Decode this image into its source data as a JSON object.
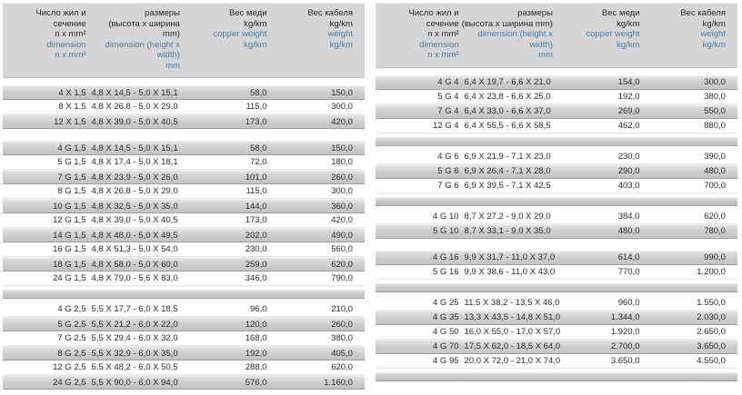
{
  "colors": {
    "header_bg": "#d6d6d6",
    "row_gray": "#cbcbcb",
    "row_white": "#ffffff",
    "text_black": "#2b2b2b",
    "text_blue": "#4a80ac"
  },
  "tables": [
    {
      "side": "left",
      "header": {
        "designation_ru": "Число жил и\nсечение\nn x mm²",
        "designation_en": "dimension\nn x mm²",
        "dimensions_ru": "размеры\n(высота х ширина\nmm)",
        "dimensions_en": "dimension (height x\nwidth)\nmm",
        "copper_ru": "Вес меди\nkg/km",
        "copper_en": "copper weight\nkg/km",
        "weight_ru": "Вес кабеля\nkg/km",
        "weight_en": "weight\nkg/km"
      },
      "end_bar": false,
      "groups": [
        {
          "sep": "none",
          "rows": [
            {
              "designation": "4 X 1,5",
              "dimensions": "4,8 X 14,5 - 5,0 X 15,1",
              "copper": "58,0",
              "weight": "150,0",
              "shade": "gray"
            },
            {
              "designation": "8 X 1,5",
              "dimensions": "4,8 X 26,8 - 5,0 X 29,0",
              "copper": "115,0",
              "weight": "300,0",
              "shade": "white"
            },
            {
              "designation": "12 X 1,5",
              "dimensions": "4,8 X 39,0 - 5,0 X 40,5",
              "copper": "173,0",
              "weight": "420,0",
              "shade": "gray"
            }
          ]
        },
        {
          "sep": "gap",
          "rows": [
            {
              "designation": "4 G 1,5",
              "dimensions": "4,8 X 14,5 - 5,0 X 15,1",
              "copper": "58,0",
              "weight": "150,0",
              "shade": "gray"
            },
            {
              "designation": "5 G 1,5",
              "dimensions": "4,8 X 17,4 - 5,0 X 18,1",
              "copper": "72,0",
              "weight": "180,0",
              "shade": "white"
            },
            {
              "designation": "7 G 1,5",
              "dimensions": "4,8 X 23,9 - 5,0 X 26,0",
              "copper": "101,0",
              "weight": "260,0",
              "shade": "gray"
            },
            {
              "designation": "8 G 1,5",
              "dimensions": "4,8 X 26,8 - 5,0 X 29,0",
              "copper": "115,0",
              "weight": "300,0",
              "shade": "white"
            },
            {
              "designation": "10 G 1,5",
              "dimensions": "4,8 X 32,5 - 5,0 X 35,0",
              "copper": "144,0",
              "weight": "360,0",
              "shade": "gray"
            },
            {
              "designation": "12 G 1,5",
              "dimensions": "4,8 X 39,0 - 5,0 X 40,5",
              "copper": "173,0",
              "weight": "420,0",
              "shade": "white"
            },
            {
              "designation": "14 G 1,5",
              "dimensions": "4,8 X 48,0 - 5,0 X 49,5",
              "copper": "202,0",
              "weight": "490,0",
              "shade": "gray"
            },
            {
              "designation": "16 G 1,5",
              "dimensions": "4,8 X 51,3 - 5,0 X 54,0",
              "copper": "230,0",
              "weight": "560,0",
              "shade": "white"
            },
            {
              "designation": "18 G 1,5",
              "dimensions": "4,8 X 58,0 - 5,0 X 60,0",
              "copper": "259,0",
              "weight": "620,0",
              "shade": "gray"
            },
            {
              "designation": "24 G 1,5",
              "dimensions": "4,8 X 79,0 - 5,6 X 83,0",
              "copper": "346,0",
              "weight": "790,0",
              "shade": "white"
            }
          ]
        },
        {
          "sep": "bar",
          "rows": [
            {
              "designation": "4 G 2,5",
              "dimensions": "5,5 X 17,7 - 6,0 X 18,5",
              "copper": "96,0",
              "weight": "210,0",
              "shade": "white"
            },
            {
              "designation": "5 G 2,5",
              "dimensions": "5,5 X 21,2 - 6,0 X 22,0",
              "copper": "120,0",
              "weight": "260,0",
              "shade": "gray"
            },
            {
              "designation": "7 G 2,5",
              "dimensions": "5,5 X 29,4 - 6,0 X 32,0",
              "copper": "168,0",
              "weight": "380,0",
              "shade": "white"
            },
            {
              "designation": "8 G 2,5",
              "dimensions": "5,5 X 32,9 - 6,0 X 35,0",
              "copper": "192,0",
              "weight": "405,0",
              "shade": "gray"
            },
            {
              "designation": "12 G 2,5",
              "dimensions": "5,5 X 48,2 - 6,0 X 50,5",
              "copper": "288,0",
              "weight": "620,0",
              "shade": "white"
            },
            {
              "designation": "24 G 2,5",
              "dimensions": "5,5 X 90,0 - 6,0 X 94,0",
              "copper": "576,0",
              "weight": "1.160,0",
              "shade": "gray"
            }
          ]
        }
      ]
    },
    {
      "side": "right",
      "header": {
        "designation_ru": "Число жил и\nсечение\nn x mm²",
        "designation_en": "dimension\nn x mm²",
        "dimensions_ru": "размеры\n(высота х ширина mm)",
        "dimensions_en": "dimension (height x\nwidth)\nmm",
        "copper_ru": "Вес меди\nkg/km",
        "copper_en": "copper weight\nkg/km",
        "weight_ru": "Вес кабеля\nkg/km",
        "weight_en": "weight\nkg/km"
      },
      "end_bar": true,
      "groups": [
        {
          "sep": "none",
          "rows": [
            {
              "designation": "4 G 4",
              "dimensions": "6,4 X 19,7 - 6,6 X 21,0",
              "copper": "154,0",
              "weight": "300,0",
              "shade": "gray"
            },
            {
              "designation": "5 G 4",
              "dimensions": "6,4 X 23,8 - 6,6 X 25,0",
              "copper": "192,0",
              "weight": "380,0",
              "shade": "white"
            },
            {
              "designation": "7 G 4",
              "dimensions": "6,4 X 33,0 - 6,6 X 37,0",
              "copper": "269,0",
              "weight": "550,0",
              "shade": "gray"
            },
            {
              "designation": "12 G 4",
              "dimensions": "6,4 X 55,5 - 6,6 X 58,5",
              "copper": "462,0",
              "weight": "880,0",
              "shade": "white"
            }
          ]
        },
        {
          "sep": "bar",
          "rows": [
            {
              "designation": "4 G 6",
              "dimensions": "6,9 X 21,9 - 7,1 X 23,0",
              "copper": "230,0",
              "weight": "390,0",
              "shade": "white"
            },
            {
              "designation": "5 G 6",
              "dimensions": "6,9 X 26,4 - 7,1 X 28,0",
              "copper": "290,0",
              "weight": "480,0",
              "shade": "gray"
            },
            {
              "designation": "7 G 6",
              "dimensions": "6,9 X 39,5 - 7,1 X 42,5",
              "copper": "403,0",
              "weight": "700,0",
              "shade": "white"
            }
          ]
        },
        {
          "sep": "bar",
          "rows": [
            {
              "designation": "4 G 10",
              "dimensions": "8,7 X 27,2 - 9,0 X 29,0",
              "copper": "384,0",
              "weight": "620,0",
              "shade": "white"
            },
            {
              "designation": "5 G 10",
              "dimensions": "8,7 X 33,1 - 9,0 X 35,0",
              "copper": "480,0",
              "weight": "780,0",
              "shade": "gray"
            }
          ]
        },
        {
          "sep": "gap",
          "rows": [
            {
              "designation": "4 G 16",
              "dimensions": "9,9 X 31,7 - 11,0 X 37,0",
              "copper": "614,0",
              "weight": "990,0",
              "shade": "gray"
            },
            {
              "designation": "5 G 16",
              "dimensions": "9,9 X 38,6 - 11,0 X 43,0",
              "copper": "770,0",
              "weight": "1.200,0",
              "shade": "white"
            }
          ]
        },
        {
          "sep": "bar",
          "rows": [
            {
              "designation": "4 G 25",
              "dimensions": "11,5 X 38,2 - 13,5 X 46,0",
              "copper": "960,0",
              "weight": "1.550,0",
              "shade": "white"
            },
            {
              "designation": "4 G 35",
              "dimensions": "13,3 X 43,5 - 14,8 X 51,0",
              "copper": "1.344,0",
              "weight": "2.030,0",
              "shade": "gray"
            },
            {
              "designation": "4 G 50",
              "dimensions": "16,0 X 55,0 - 17,0 X 57,0",
              "copper": "1.920,0",
              "weight": "2.650,0",
              "shade": "white"
            },
            {
              "designation": "4 G 70",
              "dimensions": "17,5 X 62,0 - 18,5 X 64,0",
              "copper": "2.700,0",
              "weight": "3.650,0",
              "shade": "gray"
            },
            {
              "designation": "4 G 95",
              "dimensions": "20,0 X 72,0 - 21,0 X 74,0",
              "copper": "3.650,0",
              "weight": "4.550,0",
              "shade": "white"
            }
          ]
        }
      ]
    }
  ]
}
